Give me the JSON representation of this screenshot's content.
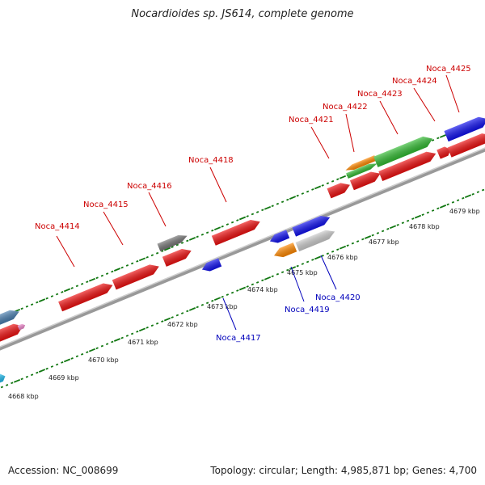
{
  "title": "Nocardioides sp. JS614, complete genome",
  "accession": "Accession: NC_008699",
  "summary": "Topology: circular; Length: 4,985,871 bp; Genes: 4,700",
  "colors": {
    "red": "#ee1111",
    "blue": "#1111ee",
    "green": "#33bb33",
    "orange": "#ff8800",
    "gray": "#777777",
    "lightgray": "#cccccc",
    "steelblue": "#4a7fb0",
    "cyan": "#22bbee",
    "pink": "#ee88cc",
    "tick": "#117711",
    "backbone": "#888888",
    "label_top": "#cc0000",
    "label_bottom": "#0000bb"
  },
  "kbp_ticks": [
    "4668 kbp",
    "4669 kbp",
    "4670 kbp",
    "4671 kbp",
    "4672 kbp",
    "4673 kbp",
    "4674 kbp",
    "4675 kbp",
    "4676 kbp",
    "4677 kbp",
    "4678 kbp",
    "4679 kbp"
  ],
  "gene_labels_top": [
    "Noca_4414",
    "Noca_4415",
    "Noca_4416",
    "Noca_4418",
    "Noca_4421",
    "Noca_4422",
    "Noca_4423",
    "Noca_4424",
    "Noca_4425"
  ],
  "gene_labels_bottom": [
    "Noca_4417",
    "Noca_4419",
    "Noca_4420"
  ],
  "genes": [
    {
      "color": "steelblue",
      "icon": "arrow"
    },
    {
      "color": "red",
      "icon": "arrow"
    },
    {
      "color": "pink",
      "icon": "arrow"
    },
    {
      "color": "cyan",
      "icon": "arrow"
    },
    {
      "color": "red",
      "icon": "arrow"
    },
    {
      "color": "red",
      "icon": "arrow"
    },
    {
      "color": "red",
      "icon": "arrow"
    },
    {
      "color": "gray",
      "icon": "arrow"
    },
    {
      "color": "red",
      "icon": "arrow"
    },
    {
      "color": "blue",
      "icon": "arrow"
    },
    {
      "color": "blue",
      "icon": "arrow"
    },
    {
      "color": "orange",
      "icon": "arrow"
    },
    {
      "color": "blue",
      "icon": "arrow"
    },
    {
      "color": "lightgray",
      "icon": "arrow"
    },
    {
      "color": "red",
      "icon": "arrow"
    },
    {
      "color": "red",
      "icon": "arrow"
    },
    {
      "color": "orange",
      "icon": "arrow"
    },
    {
      "color": "green",
      "icon": "arrow"
    },
    {
      "color": "green",
      "icon": "arrow"
    },
    {
      "color": "red",
      "icon": "arrow"
    },
    {
      "color": "red",
      "icon": "arrow"
    },
    {
      "color": "blue",
      "icon": "arrow"
    },
    {
      "color": "red",
      "icon": "arrow"
    }
  ]
}
